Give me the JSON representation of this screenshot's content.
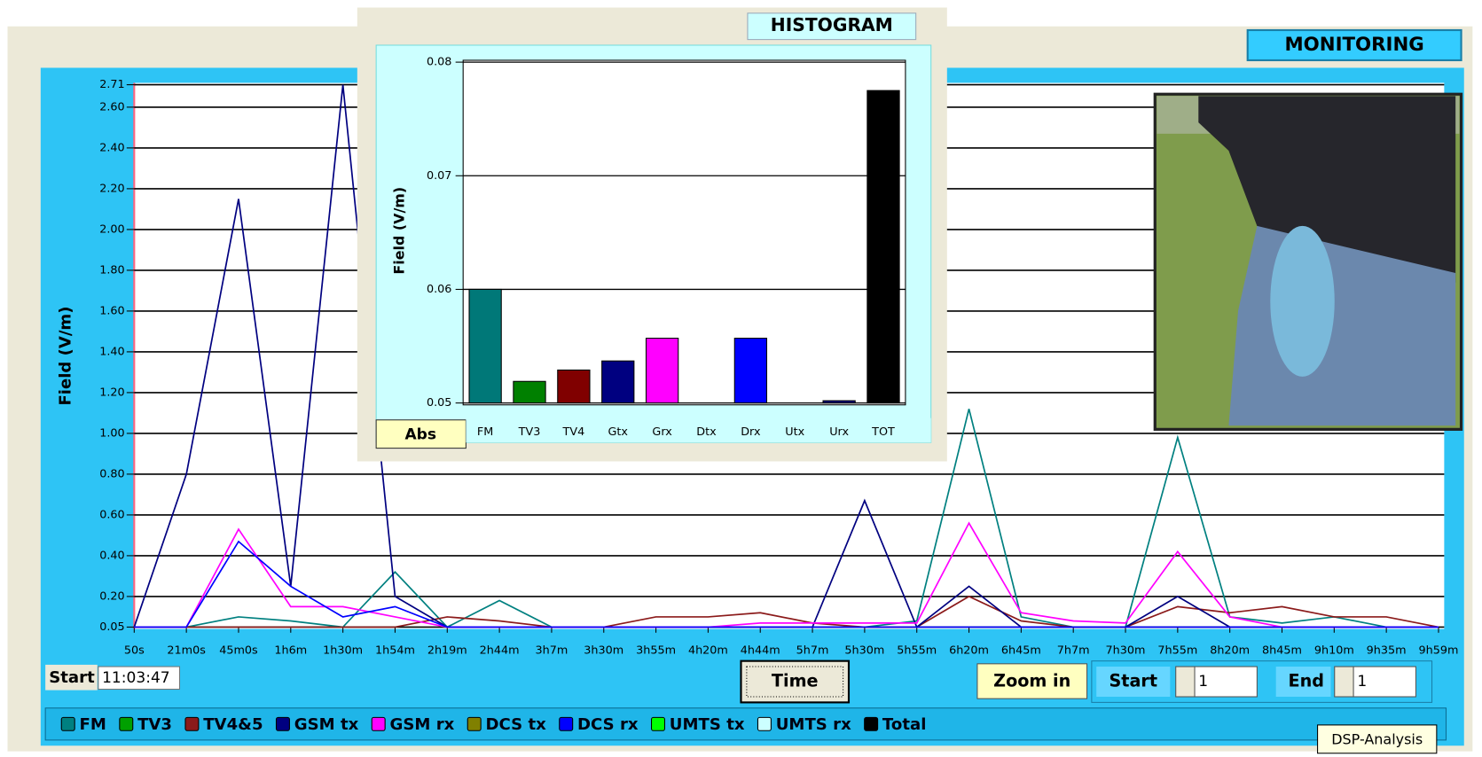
{
  "chart_data": [
    {
      "type": "line",
      "title": "MONITORING",
      "y_label": "Field (V/m)",
      "categories": [
        "50s",
        "21m0s",
        "45m0s",
        "1h6m",
        "1h30m",
        "1h54m",
        "2h19m",
        "2h44m",
        "3h7m",
        "3h30m",
        "3h55m",
        "4h20m",
        "4h44m",
        "5h7m",
        "5h30m",
        "5h55m",
        "6h20m",
        "6h45m",
        "7h7m",
        "7h30m",
        "7h55m",
        "8h20m",
        "8h45m",
        "9h10m",
        "9h35m",
        "9h59m"
      ],
      "series": [
        {
          "name": "FM",
          "color": "#008080",
          "values": [
            0.05,
            0.05,
            0.1,
            0.08,
            0.05,
            0.32,
            0.05,
            0.18,
            0.05,
            0.05,
            0.05,
            0.05,
            0.05,
            0.05,
            0.05,
            0.08,
            1.12,
            0.1,
            0.05,
            0.05,
            0.98,
            0.1,
            0.07,
            0.1,
            0.05,
            0.05
          ]
        },
        {
          "name": "TV3",
          "color": "#00a000",
          "values": [
            null,
            null,
            null,
            null,
            null,
            null,
            null,
            null,
            null,
            null,
            null,
            null,
            null,
            null,
            null,
            null,
            null,
            null,
            null,
            null,
            null,
            null,
            null,
            null,
            null,
            null
          ]
        },
        {
          "name": "TV4&5",
          "color": "#8b1a1a",
          "values": [
            0.05,
            0.05,
            0.05,
            0.05,
            0.05,
            0.05,
            0.1,
            0.08,
            0.05,
            0.05,
            0.1,
            0.1,
            0.12,
            0.07,
            0.05,
            0.05,
            0.2,
            0.08,
            0.05,
            0.05,
            0.15,
            0.12,
            0.15,
            0.1,
            0.1,
            0.05
          ]
        },
        {
          "name": "GSM tx",
          "color": "#000080",
          "values": [
            0.05,
            0.8,
            2.15,
            0.25,
            2.71,
            0.2,
            0.05,
            0.05,
            0.05,
            0.05,
            0.05,
            0.05,
            0.05,
            0.05,
            0.67,
            0.05,
            0.25,
            0.05,
            0.05,
            0.05,
            0.2,
            0.05,
            0.05,
            0.05,
            0.05,
            0.05
          ]
        },
        {
          "name": "GSM rx",
          "color": "#ff00ff",
          "values": [
            0.05,
            0.05,
            0.53,
            0.15,
            0.15,
            0.1,
            0.05,
            0.05,
            0.05,
            0.05,
            0.05,
            0.05,
            0.07,
            0.07,
            0.07,
            0.07,
            0.56,
            0.12,
            0.08,
            0.07,
            0.42,
            0.1,
            0.05,
            0.05,
            0.05,
            0.05
          ]
        },
        {
          "name": "DCS tx",
          "color": "#808000",
          "values": [
            null,
            null,
            null,
            null,
            null,
            null,
            null,
            null,
            null,
            null,
            null,
            null,
            null,
            null,
            null,
            null,
            null,
            null,
            null,
            null,
            null,
            null,
            null,
            null,
            null,
            null
          ]
        },
        {
          "name": "DCS rx",
          "color": "#0000ff",
          "values": [
            0.05,
            0.05,
            0.47,
            0.25,
            0.1,
            0.15,
            0.05,
            0.05,
            0.05,
            0.05,
            0.05,
            0.05,
            0.05,
            0.05,
            0.05,
            0.05,
            0.05,
            0.05,
            0.05,
            0.05,
            0.05,
            0.05,
            0.05,
            0.05,
            0.05,
            0.05
          ]
        },
        {
          "name": "UMTS tx",
          "color": "#00ff00",
          "values": [
            null,
            null,
            null,
            null,
            null,
            null,
            null,
            null,
            null,
            null,
            null,
            null,
            null,
            null,
            null,
            null,
            null,
            null,
            null,
            null,
            null,
            null,
            null,
            null,
            null,
            null
          ]
        },
        {
          "name": "UMTS rx",
          "color": "#ccffff",
          "values": [
            null,
            null,
            null,
            null,
            null,
            null,
            null,
            null,
            null,
            null,
            null,
            null,
            null,
            null,
            null,
            null,
            null,
            null,
            null,
            null,
            null,
            null,
            null,
            null,
            null,
            null
          ]
        },
        {
          "name": "Total",
          "color": "#000000",
          "values": [
            null,
            null,
            null,
            null,
            null,
            null,
            null,
            null,
            null,
            null,
            null,
            null,
            null,
            null,
            null,
            null,
            null,
            null,
            null,
            null,
            null,
            null,
            null,
            null,
            null,
            null
          ]
        }
      ],
      "ylim": [
        0.05,
        2.71
      ],
      "yticks": [
        0.05,
        {
          "value": 0.2,
          "label": "0.20"
        },
        {
          "value": 0.4,
          "label": "0.40"
        },
        {
          "value": 0.6,
          "label": "0.60"
        },
        {
          "value": 0.8,
          "label": "0.80"
        },
        {
          "value": 1,
          "label": "1.00"
        },
        {
          "value": 1.2,
          "label": "1.20"
        },
        {
          "value": 1.4,
          "label": "1.40"
        },
        {
          "value": 1.6,
          "label": "1.60"
        },
        {
          "value": 1.8,
          "label": "1.80"
        },
        {
          "value": 2,
          "label": "2.00"
        },
        {
          "value": 2.2,
          "label": "2.20"
        },
        {
          "value": 2.4,
          "label": "2.40"
        },
        {
          "value": 2.6,
          "label": "2.60"
        },
        2.71
      ],
      "grid": true
    },
    {
      "type": "bar",
      "title": "HISTOGRAM",
      "y_label": "Field (V/m)",
      "categories": [
        "FM",
        "TV3",
        "TV4",
        "Gtx",
        "Grx",
        "Dtx",
        "Drx",
        "Utx",
        "Urx",
        "TOT"
      ],
      "values": [
        0.06,
        0.0519,
        0.0529,
        0.0537,
        0.0557,
        null,
        0.0557,
        null,
        0.0502,
        0.0775
      ],
      "colors": [
        "#007878",
        "#008000",
        "#800000",
        "#000080",
        "#ff00ff",
        "#808000",
        "#0000ff",
        "#00ff00",
        "#000080",
        "#000000"
      ],
      "ylim": [
        0.05,
        0.08
      ],
      "yticks": [
        0.05,
        0.06,
        0.07,
        0.08
      ],
      "grid": true
    }
  ],
  "controls": {
    "mode_button": "Abs",
    "start_label": "Start",
    "start_time": "11:03:47",
    "time_button": "Time",
    "zoom_button": "Zoom in",
    "range_start_label": "Start",
    "range_start_value": "1",
    "range_end_label": "End",
    "range_end_value": "1",
    "tooltip": "DSP-Analysis"
  }
}
